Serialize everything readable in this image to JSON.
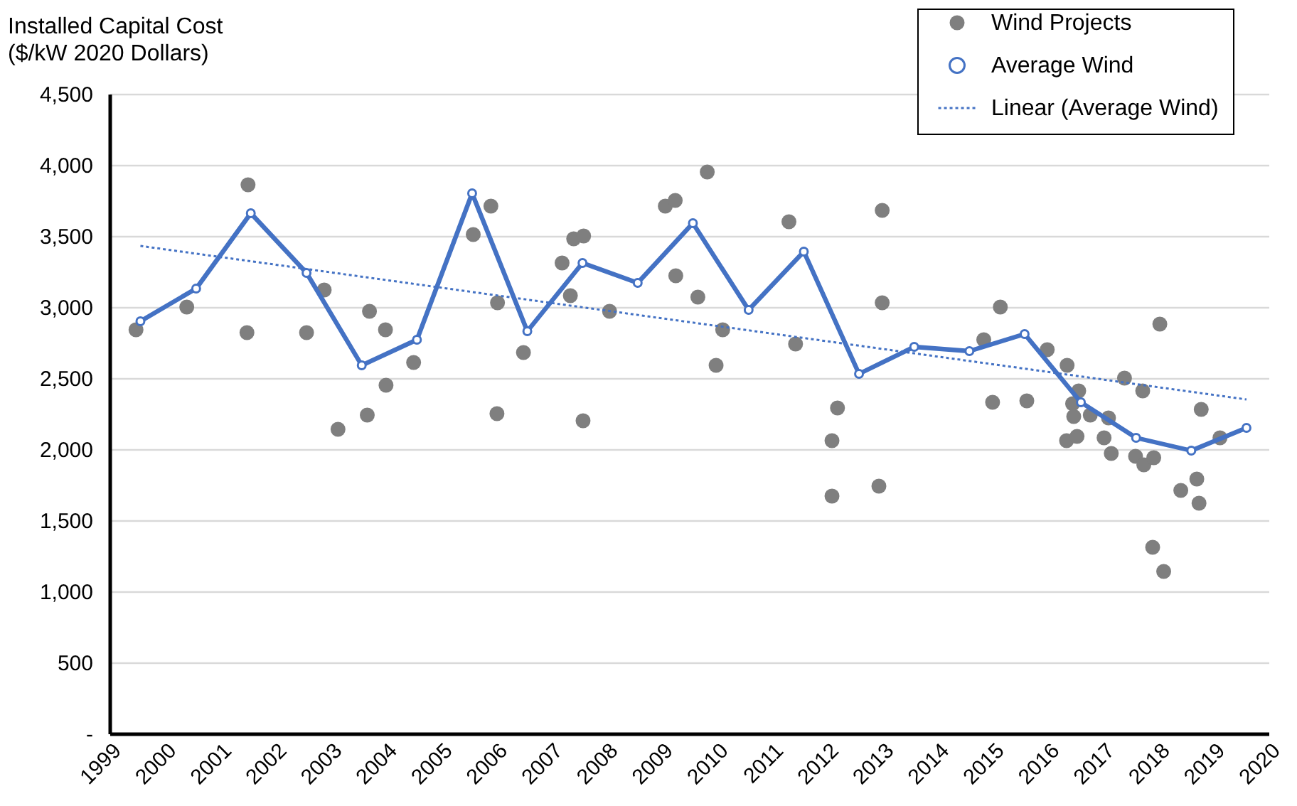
{
  "chart_data": {
    "type": "scatter",
    "ylabel": "Installed Capital Cost\n ($/kW 2020 Dollars)",
    "xlim": [
      1999,
      2020
    ],
    "xticks": [
      1999,
      2000,
      2001,
      2002,
      2003,
      2004,
      2005,
      2006,
      2007,
      2008,
      2009,
      2010,
      2011,
      2012,
      2013,
      2014,
      2015,
      2016,
      2017,
      2018,
      2019,
      2020
    ],
    "ylim": [
      0,
      4500
    ],
    "yticks": [
      {
        "value": 0,
        "label": "-"
      },
      {
        "value": 500,
        "label": "500"
      },
      {
        "value": 1000,
        "label": "1,000"
      },
      {
        "value": 1500,
        "label": "1,500"
      },
      {
        "value": 2000,
        "label": "2,000"
      },
      {
        "value": 2500,
        "label": "2,500"
      },
      {
        "value": 3000,
        "label": "3,000"
      },
      {
        "value": 3500,
        "label": "3,500"
      },
      {
        "value": 4000,
        "label": "4,000"
      },
      {
        "value": 4500,
        "label": "4,500"
      }
    ],
    "grid": "y",
    "legend": "top right",
    "series": [
      {
        "name": "Wind Projects",
        "type": "scatter",
        "marker": "circle",
        "color": "#7f7f7f",
        "x": [
          1999.48,
          2000.4,
          2001.51,
          2001.49,
          2002.57,
          2002.89,
          2003.14,
          2003.71,
          2003.67,
          2004.0,
          2004.01,
          2004.51,
          2005.59,
          2005.91,
          2006.03,
          2006.02,
          2006.5,
          2007.2,
          2007.41,
          2007.59,
          2007.35,
          2007.58,
          2008.06,
          2009.07,
          2009.25,
          2009.26,
          2009.83,
          2009.66,
          2010.11,
          2009.99,
          2011.31,
          2011.43,
          2013.0,
          2013.0,
          2012.19,
          2012.09,
          2012.09,
          2012.94,
          2014.84,
          2015.14,
          2015.0,
          2015.62,
          2015.99,
          2016.35,
          2016.56,
          2016.45,
          2016.47,
          2016.77,
          2016.34,
          2016.53,
          2017.1,
          2017.02,
          2017.15,
          2017.39,
          2017.72,
          2017.59,
          2017.74,
          2017.92,
          2018.03,
          2017.9,
          2018.1,
          2018.78,
          2018.7,
          2018.41,
          2018.74,
          2019.12
        ],
        "values": [
          2840,
          3000,
          3860,
          2820,
          2820,
          3120,
          2140,
          2970,
          2240,
          2840,
          2450,
          2610,
          3510,
          3710,
          3030,
          2250,
          2680,
          3310,
          3480,
          3500,
          3080,
          2200,
          2970,
          3710,
          3750,
          3220,
          3950,
          3070,
          2840,
          2590,
          3600,
          2740,
          3680,
          3030,
          2290,
          2060,
          1670,
          1740,
          2770,
          3000,
          2330,
          2340,
          2700,
          2590,
          2410,
          2320,
          2230,
          2240,
          2060,
          2090,
          2220,
          2080,
          1970,
          2500,
          2410,
          1950,
          1890,
          1940,
          2880,
          1310,
          1140,
          2280,
          1790,
          1710,
          1620,
          2080
        ]
      },
      {
        "name": "Average Wind",
        "type": "line",
        "marker": "circle",
        "line_style": "solid",
        "color": "#4472c4",
        "x": [
          1999.56,
          2000.57,
          2001.56,
          2002.57,
          2003.57,
          2004.57,
          2005.57,
          2006.57,
          2007.57,
          2008.57,
          2009.57,
          2010.58,
          2011.58,
          2012.58,
          2013.58,
          2014.58,
          2015.58,
          2016.6,
          2017.6,
          2018.6,
          2019.6
        ],
        "values": [
          2900,
          3130,
          3660,
          3240,
          2590,
          2770,
          3800,
          2830,
          3310,
          3170,
          3590,
          2980,
          3390,
          2530,
          2720,
          2690,
          2810,
          2330,
          2080,
          1990,
          2150
        ]
      },
      {
        "name": "Linear (Average Wind)",
        "type": "line",
        "marker": "none",
        "line_style": "dotted",
        "color": "#4472c4",
        "x": [
          1999.56,
          2019.6
        ],
        "values": [
          3430,
          2350
        ]
      }
    ]
  }
}
